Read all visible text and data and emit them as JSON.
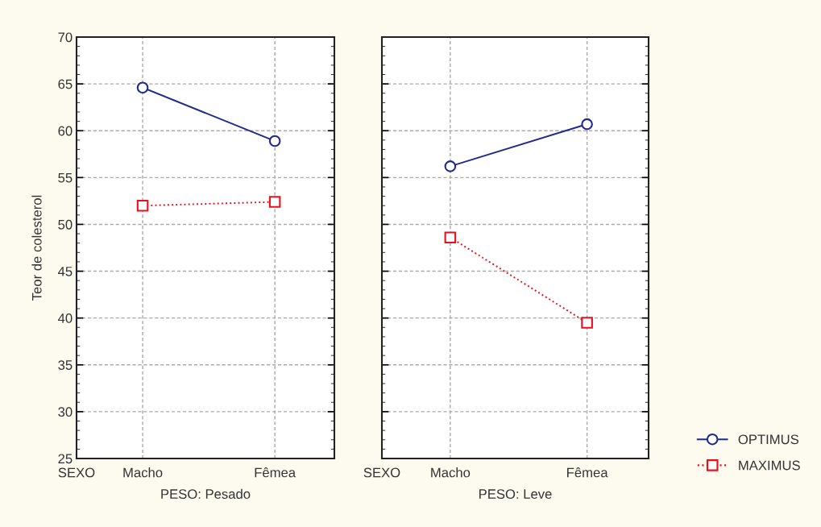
{
  "chart_data": [
    {
      "type": "line",
      "ylabel": "Teor de colesterol",
      "xlabel": "PESO: Pesado",
      "annotations": [
        "SEXO"
      ],
      "categories": [
        "Macho",
        "Fêmea"
      ],
      "ylim": [
        25,
        70
      ],
      "yticks": [
        25,
        30,
        35,
        40,
        45,
        50,
        55,
        60,
        65,
        70
      ],
      "grid": true,
      "legend": "bottom right",
      "series": [
        {
          "name": "OPTIMUS",
          "color": "#1f2a8c",
          "marker": "circle",
          "line_style": "solid",
          "values": [
            64.6,
            58.9
          ]
        },
        {
          "name": "MAXIMUS",
          "color": "#e8101e",
          "marker": "square",
          "line_style": "dotted",
          "values": [
            52.0,
            52.4
          ]
        }
      ]
    },
    {
      "type": "line",
      "xlabel": "PESO: Leve",
      "annotations": [
        "SEXO"
      ],
      "categories": [
        "Macho",
        "Fêmea"
      ],
      "ylim": [
        25,
        70
      ],
      "yticks": [
        25,
        30,
        35,
        40,
        45,
        50,
        55,
        60,
        65,
        70
      ],
      "tick_labels": "x",
      "grid": true,
      "legend": "bottom right",
      "series": [
        {
          "name": "OPTIMUS",
          "color": "#1f2a8c",
          "marker": "circle",
          "line_style": "solid",
          "values": [
            56.2,
            60.7
          ]
        },
        {
          "name": "MAXIMUS",
          "color": "#e8101e",
          "marker": "square",
          "line_style": "dotted",
          "values": [
            48.6,
            39.5
          ]
        }
      ]
    }
  ]
}
